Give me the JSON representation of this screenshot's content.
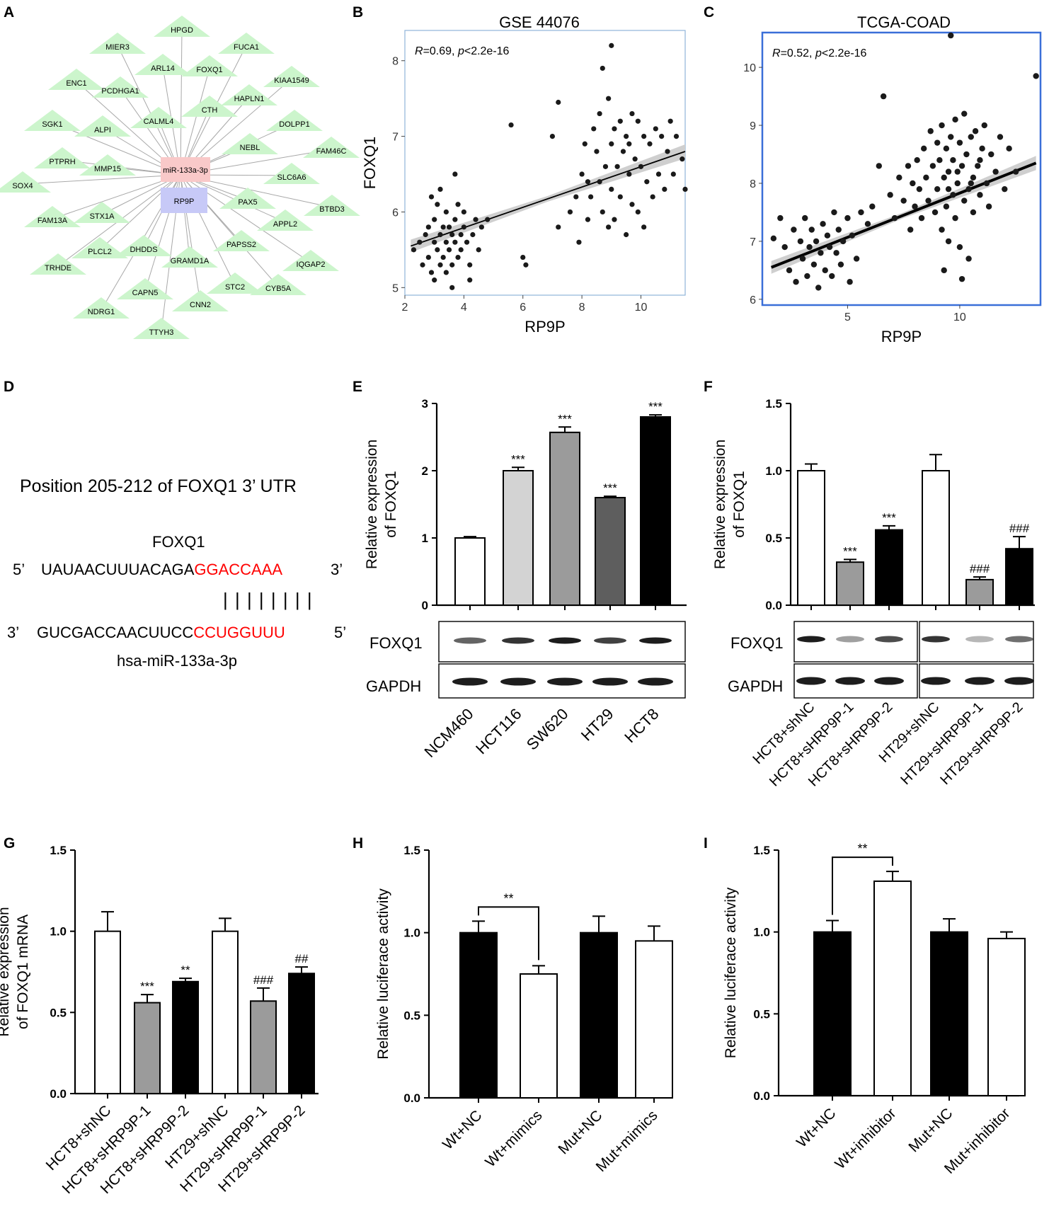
{
  "panels": {
    "A": "A",
    "B": "B",
    "C": "C",
    "D": "D",
    "E": "E",
    "F": "F",
    "G": "G",
    "H": "H",
    "I": "I"
  },
  "colors": {
    "node_green": "#ccf5cc",
    "mirna_pink": "#f9c9c9",
    "lncrna_blue": "#c7c9f7",
    "edge_gray": "#a8a8a8",
    "highlight_red": "#ff0000",
    "grey_bar": "#9b9b9b",
    "light_bar": "#d3d3d3",
    "dark_bar": "#5e5e5e",
    "frame_blue": "#3a6fd8",
    "frame_lightblue": "#8fb4d9"
  },
  "network": {
    "mirna": "miR-133a-3p",
    "lncrna": "RP9P",
    "genes": [
      "HPGD",
      "FUCA1",
      "MIER3",
      "ARL14",
      "FOXQ1",
      "KIAA1549",
      "ENC1",
      "PCDHGA1",
      "HAPLN1",
      "CTH",
      "CALML4",
      "DOLPP1",
      "SGK1",
      "ALPI",
      "FAM46C",
      "NEBL",
      "PTPRH",
      "MMP15",
      "SLC6A6",
      "SOX4",
      "PAX5",
      "BTBD3",
      "FAM13A",
      "STX1A",
      "APPL2",
      "PAPSS2",
      "DHDDS",
      "PLCL2",
      "IQGAP2",
      "TRHDE",
      "GRAMD1A",
      "CAPN5",
      "STC2",
      "CYB5A",
      "NDRG1",
      "CNN2",
      "TTYH3"
    ]
  },
  "panel_d": {
    "title": "Position 205-212 of FOXQ1 3’ UTR",
    "gene": "FOXQ1",
    "top_5": "5’",
    "top_seq_black": "UAUAACUUUACAGA",
    "top_seq_red": "GGACCAAA",
    "top_3": "3’",
    "pairing": "| | | | | | | |",
    "bottom_3": "3’",
    "bottom_seq_black": "GUCGACCAACUUCC",
    "bottom_seq_red": "CCUGGUUU",
    "bottom_5": "5’",
    "mirna": "hsa-miR-133a-3p"
  },
  "blots": {
    "E": {
      "foxq1": "FOXQ1",
      "gapdh": "GAPDH"
    },
    "F": {
      "foxq1": "FOXQ1",
      "gapdh": "GAPDH"
    }
  },
  "chart_data": [
    {
      "id": "B",
      "type": "scatter",
      "title": "GSE 44076",
      "xlabel": "RP9P",
      "ylabel": "FOXQ1",
      "xlim": [
        2,
        11.5
      ],
      "ylim": [
        4.9,
        8.4
      ],
      "xticks": [
        2,
        4,
        6,
        8,
        10
      ],
      "yticks": [
        5,
        6,
        7,
        8
      ],
      "annotation": {
        "r": "0.69",
        "p": "2.2e-16"
      },
      "fit": {
        "x": [
          2.2,
          11.5
        ],
        "y": [
          5.55,
          6.8
        ]
      },
      "points": [
        [
          2.3,
          5.5
        ],
        [
          2.5,
          5.6
        ],
        [
          2.6,
          5.3
        ],
        [
          2.7,
          5.7
        ],
        [
          2.8,
          5.4
        ],
        [
          2.8,
          5.8
        ],
        [
          2.9,
          5.2
        ],
        [
          3.0,
          5.6
        ],
        [
          3.0,
          5.9
        ],
        [
          3.1,
          5.5
        ],
        [
          3.1,
          6.1
        ],
        [
          3.2,
          5.7
        ],
        [
          3.2,
          5.3
        ],
        [
          3.3,
          5.8
        ],
        [
          3.3,
          5.4
        ],
        [
          3.4,
          5.6
        ],
        [
          3.4,
          6.0
        ],
        [
          3.5,
          5.5
        ],
        [
          3.5,
          5.8
        ],
        [
          3.6,
          5.7
        ],
        [
          3.6,
          5.3
        ],
        [
          3.7,
          5.6
        ],
        [
          3.7,
          5.9
        ],
        [
          3.8,
          5.4
        ],
        [
          3.8,
          6.1
        ],
        [
          3.9,
          5.7
        ],
        [
          3.9,
          5.5
        ],
        [
          4.0,
          5.8
        ],
        [
          4.0,
          6.0
        ],
        [
          4.1,
          5.6
        ],
        [
          4.2,
          5.3
        ],
        [
          4.3,
          5.7
        ],
        [
          4.4,
          5.9
        ],
        [
          4.5,
          5.5
        ],
        [
          4.6,
          5.8
        ],
        [
          3.2,
          6.3
        ],
        [
          3.7,
          6.5
        ],
        [
          3.0,
          5.1
        ],
        [
          3.6,
          5.0
        ],
        [
          4.2,
          5.1
        ],
        [
          2.9,
          6.2
        ],
        [
          3.4,
          5.2
        ],
        [
          4.8,
          5.9
        ],
        [
          5.6,
          7.15
        ],
        [
          6.0,
          5.4
        ],
        [
          6.1,
          5.3
        ],
        [
          7.0,
          7.0
        ],
        [
          7.2,
          5.8
        ],
        [
          7.2,
          7.45
        ],
        [
          7.6,
          6.0
        ],
        [
          7.8,
          6.2
        ],
        [
          7.9,
          5.6
        ],
        [
          8.0,
          6.5
        ],
        [
          8.1,
          6.9
        ],
        [
          8.2,
          5.9
        ],
        [
          8.3,
          6.2
        ],
        [
          8.4,
          7.1
        ],
        [
          8.5,
          6.8
        ],
        [
          8.6,
          6.4
        ],
        [
          8.6,
          7.3
        ],
        [
          8.7,
          6.0
        ],
        [
          8.8,
          6.6
        ],
        [
          8.9,
          7.5
        ],
        [
          8.9,
          5.8
        ],
        [
          9.0,
          6.9
        ],
        [
          9.0,
          6.3
        ],
        [
          9.1,
          7.1
        ],
        [
          9.1,
          5.9
        ],
        [
          9.2,
          6.6
        ],
        [
          9.3,
          7.2
        ],
        [
          9.3,
          6.2
        ],
        [
          9.4,
          6.8
        ],
        [
          9.5,
          7.0
        ],
        [
          9.5,
          5.7
        ],
        [
          9.6,
          6.5
        ],
        [
          9.7,
          7.3
        ],
        [
          9.7,
          6.1
        ],
        [
          9.8,
          6.7
        ],
        [
          9.9,
          7.2
        ],
        [
          9.9,
          6.0
        ],
        [
          10.0,
          6.6
        ],
        [
          10.1,
          7.0
        ],
        [
          10.1,
          5.8
        ],
        [
          10.2,
          6.4
        ],
        [
          10.3,
          6.9
        ],
        [
          10.4,
          6.2
        ],
        [
          10.5,
          7.1
        ],
        [
          10.6,
          6.5
        ],
        [
          10.7,
          7.0
        ],
        [
          10.8,
          6.3
        ],
        [
          10.9,
          6.8
        ],
        [
          11.0,
          7.2
        ],
        [
          11.1,
          6.5
        ],
        [
          11.2,
          7.0
        ],
        [
          11.4,
          6.7
        ],
        [
          11.5,
          6.3
        ],
        [
          8.7,
          7.9
        ],
        [
          9.0,
          8.2
        ],
        [
          8.2,
          6.4
        ],
        [
          9.6,
          6.9
        ]
      ]
    },
    {
      "id": "C",
      "type": "scatter",
      "title": "TCGA-COAD",
      "xlabel": "RP9P",
      "ylabel": "",
      "xlim": [
        1.2,
        13.6
      ],
      "ylim": [
        5.9,
        10.6
      ],
      "xticks": [
        5,
        10
      ],
      "yticks": [
        6,
        7,
        8,
        9,
        10
      ],
      "annotation": {
        "r": "0.52",
        "p": "2.2e-16"
      },
      "fit": {
        "x": [
          1.6,
          13.4
        ],
        "y": [
          6.55,
          8.35
        ]
      },
      "points": [
        [
          1.7,
          7.05
        ],
        [
          2.0,
          7.4
        ],
        [
          2.2,
          6.9
        ],
        [
          2.4,
          6.5
        ],
        [
          2.6,
          7.2
        ],
        [
          2.7,
          6.3
        ],
        [
          2.9,
          7.0
        ],
        [
          3.0,
          6.7
        ],
        [
          3.1,
          7.4
        ],
        [
          3.2,
          6.4
        ],
        [
          3.3,
          6.9
        ],
        [
          3.4,
          7.2
        ],
        [
          3.5,
          6.6
        ],
        [
          3.6,
          7.0
        ],
        [
          3.7,
          6.2
        ],
        [
          3.8,
          6.8
        ],
        [
          3.9,
          7.3
        ],
        [
          4.0,
          6.5
        ],
        [
          4.1,
          7.1
        ],
        [
          4.2,
          6.9
        ],
        [
          4.3,
          6.4
        ],
        [
          4.4,
          7.5
        ],
        [
          4.5,
          6.8
        ],
        [
          4.6,
          7.2
        ],
        [
          4.7,
          6.6
        ],
        [
          4.8,
          7.0
        ],
        [
          5.0,
          7.4
        ],
        [
          5.1,
          6.3
        ],
        [
          5.2,
          7.1
        ],
        [
          5.4,
          6.7
        ],
        [
          5.6,
          7.5
        ],
        [
          5.9,
          7.3
        ],
        [
          6.1,
          7.6
        ],
        [
          6.4,
          8.3
        ],
        [
          6.6,
          9.5
        ],
        [
          6.9,
          7.8
        ],
        [
          7.1,
          7.4
        ],
        [
          7.3,
          8.1
        ],
        [
          7.5,
          7.7
        ],
        [
          7.7,
          8.3
        ],
        [
          7.8,
          7.2
        ],
        [
          7.9,
          8.0
        ],
        [
          8.0,
          7.6
        ],
        [
          8.1,
          8.4
        ],
        [
          8.2,
          7.9
        ],
        [
          8.3,
          7.4
        ],
        [
          8.4,
          8.6
        ],
        [
          8.5,
          8.1
        ],
        [
          8.6,
          7.7
        ],
        [
          8.7,
          8.9
        ],
        [
          8.8,
          8.3
        ],
        [
          8.9,
          7.5
        ],
        [
          9.0,
          8.7
        ],
        [
          9.0,
          7.9
        ],
        [
          9.1,
          8.4
        ],
        [
          9.2,
          7.2
        ],
        [
          9.2,
          9.0
        ],
        [
          9.3,
          8.1
        ],
        [
          9.4,
          7.6
        ],
        [
          9.4,
          8.6
        ],
        [
          9.5,
          8.2
        ],
        [
          9.5,
          7.0
        ],
        [
          9.6,
          8.8
        ],
        [
          9.7,
          7.8
        ],
        [
          9.7,
          8.4
        ],
        [
          9.8,
          9.1
        ],
        [
          9.8,
          7.4
        ],
        [
          9.9,
          8.0
        ],
        [
          10.0,
          8.7
        ],
        [
          10.0,
          6.9
        ],
        [
          10.1,
          8.3
        ],
        [
          10.2,
          7.7
        ],
        [
          10.2,
          9.2
        ],
        [
          10.3,
          8.5
        ],
        [
          10.4,
          7.9
        ],
        [
          10.4,
          6.7
        ],
        [
          10.5,
          8.8
        ],
        [
          10.6,
          8.1
        ],
        [
          10.6,
          7.5
        ],
        [
          10.7,
          8.9
        ],
        [
          10.8,
          8.3
        ],
        [
          10.9,
          7.8
        ],
        [
          11.0,
          8.6
        ],
        [
          11.1,
          9.0
        ],
        [
          11.2,
          8.0
        ],
        [
          11.3,
          7.6
        ],
        [
          11.4,
          8.5
        ],
        [
          11.6,
          8.2
        ],
        [
          11.8,
          8.8
        ],
        [
          12.0,
          7.9
        ],
        [
          12.2,
          8.6
        ],
        [
          12.5,
          8.2
        ],
        [
          9.6,
          10.55
        ],
        [
          13.4,
          9.85
        ],
        [
          9.3,
          6.5
        ],
        [
          10.1,
          6.35
        ],
        [
          9.9,
          8.2
        ],
        [
          10.5,
          8.0
        ],
        [
          10.9,
          8.4
        ],
        [
          9.5,
          7.9
        ]
      ]
    },
    {
      "id": "E",
      "type": "bar",
      "ylabel_line1": "Relative expression",
      "ylabel_line2": "of FOXQ1",
      "ylim": [
        0,
        3
      ],
      "yticks": [
        "0",
        "1",
        "2",
        "3"
      ],
      "categories": [
        "NCM460",
        "HCT116",
        "SW620",
        "HT29",
        "HCT8"
      ],
      "values": [
        1.0,
        2.0,
        2.57,
        1.6,
        2.8
      ],
      "errors": [
        0.02,
        0.05,
        0.08,
        0.02,
        0.03
      ],
      "fills": [
        "#ffffff",
        "#d3d3d3",
        "#9b9b9b",
        "#5e5e5e",
        "#000000"
      ],
      "stars": [
        "",
        "***",
        "***",
        "***",
        "***"
      ]
    },
    {
      "id": "F",
      "type": "bar",
      "ylabel_line1": "Relative expression",
      "ylabel_line2": "of FOXQ1",
      "ylim": [
        0,
        1.5
      ],
      "yticks": [
        "0.0",
        "0.5",
        "1.0",
        "1.5"
      ],
      "categories": [
        "HCT8+shNC",
        "HCT8+sHRP9P-1",
        "HCT8+sHRP9P-2",
        "HT29+shNC",
        "HT29+sHRP9P-1",
        "HT29+sHRP9P-2"
      ],
      "values": [
        1.0,
        0.32,
        0.56,
        1.0,
        0.19,
        0.42
      ],
      "errors": [
        0.05,
        0.02,
        0.03,
        0.12,
        0.02,
        0.09
      ],
      "fills": [
        "#ffffff",
        "#9b9b9b",
        "#000000",
        "#ffffff",
        "#9b9b9b",
        "#000000"
      ],
      "stars": [
        "",
        "***",
        "***",
        "",
        "###",
        "###"
      ]
    },
    {
      "id": "G",
      "type": "bar",
      "ylabel_line1": "Relative expression",
      "ylabel_line2": "of FOXQ1 mRNA",
      "ylim": [
        0,
        1.5
      ],
      "yticks": [
        "0.0",
        "0.5",
        "1.0",
        "1.5"
      ],
      "categories": [
        "HCT8+shNC",
        "HCT8+sHRP9P-1",
        "HCT8+sHRP9P-2",
        "HT29+shNC",
        "HT29+sHRP9P-1",
        "HT29+sHRP9P-2"
      ],
      "values": [
        1.0,
        0.56,
        0.69,
        1.0,
        0.57,
        0.74
      ],
      "errors": [
        0.12,
        0.05,
        0.02,
        0.08,
        0.08,
        0.04
      ],
      "fills": [
        "#ffffff",
        "#9b9b9b",
        "#000000",
        "#ffffff",
        "#9b9b9b",
        "#000000"
      ],
      "stars": [
        "",
        "***",
        "**",
        "",
        "###",
        "##"
      ]
    },
    {
      "id": "H",
      "type": "bar",
      "ylabel_line1": "Relative luciferace activity",
      "ylabel_line2": "",
      "ylim": [
        0,
        1.5
      ],
      "yticks": [
        "0.0",
        "0.5",
        "1.0",
        "1.5"
      ],
      "categories": [
        "Wt+NC",
        "Wt+mimics",
        "Mut+NC",
        "Mut+mimics"
      ],
      "values": [
        1.0,
        0.75,
        1.0,
        0.95
      ],
      "errors": [
        0.07,
        0.05,
        0.1,
        0.09
      ],
      "fills": [
        "#000000",
        "#ffffff",
        "#000000",
        "#ffffff"
      ],
      "stars": [
        "",
        "",
        "",
        ""
      ],
      "bracket": {
        "from": 0,
        "to": 1,
        "label": "**"
      }
    },
    {
      "id": "I",
      "type": "bar",
      "ylabel_line1": "Relative luciferace activity",
      "ylabel_line2": "",
      "ylim": [
        0,
        1.5
      ],
      "yticks": [
        "0.0",
        "0.5",
        "1.0",
        "1.5"
      ],
      "categories": [
        "Wt+NC",
        "Wt+inhibitor",
        "Mut+NC",
        "Mut+inhibitor"
      ],
      "values": [
        1.0,
        1.31,
        1.0,
        0.96
      ],
      "errors": [
        0.07,
        0.06,
        0.08,
        0.04
      ],
      "fills": [
        "#000000",
        "#ffffff",
        "#000000",
        "#ffffff"
      ],
      "stars": [
        "",
        "",
        "",
        ""
      ],
      "bracket": {
        "from": 0,
        "to": 1,
        "label": "**"
      }
    }
  ]
}
